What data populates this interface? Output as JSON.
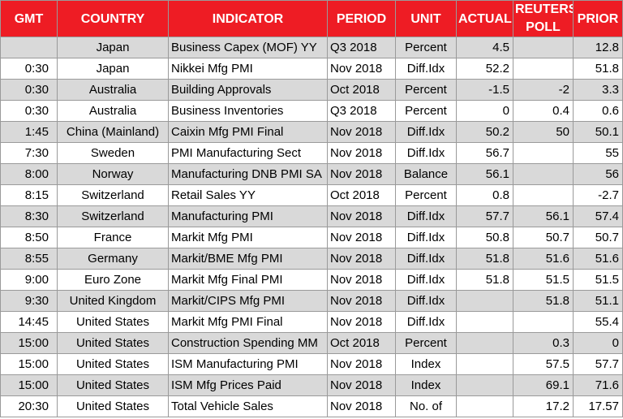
{
  "headers": {
    "gmt": "GMT",
    "country": "COUNTRY",
    "indicator": "INDICATOR",
    "period": "PERIOD",
    "unit": "UNIT",
    "actual": "ACTUAL",
    "reuters_line1": "REUTERS",
    "reuters_line2": "POLL",
    "prior": "PRIOR"
  },
  "rows": [
    {
      "gmt": "",
      "country": "Japan",
      "indicator": "Business Capex (MOF) YY",
      "period": "Q3 2018",
      "unit": "Percent",
      "actual": "4.5",
      "poll": "",
      "prior": "12.8"
    },
    {
      "gmt": "0:30",
      "country": "Japan",
      "indicator": "Nikkei Mfg PMI",
      "period": "Nov 2018",
      "unit": "Diff.Idx",
      "actual": "52.2",
      "poll": "",
      "prior": "51.8"
    },
    {
      "gmt": "0:30",
      "country": "Australia",
      "indicator": "Building Approvals",
      "period": "Oct 2018",
      "unit": "Percent",
      "actual": "-1.5",
      "poll": "-2",
      "prior": "3.3"
    },
    {
      "gmt": "0:30",
      "country": "Australia",
      "indicator": "Business Inventories",
      "period": "Q3 2018",
      "unit": "Percent",
      "actual": "0",
      "poll": "0.4",
      "prior": "0.6"
    },
    {
      "gmt": "1:45",
      "country": "China (Mainland)",
      "indicator": "Caixin Mfg PMI Final",
      "period": "Nov 2018",
      "unit": "Diff.Idx",
      "actual": "50.2",
      "poll": "50",
      "prior": "50.1"
    },
    {
      "gmt": "7:30",
      "country": "Sweden",
      "indicator": "PMI Manufacturing Sect",
      "period": "Nov 2018",
      "unit": "Diff.Idx",
      "actual": "56.7",
      "poll": "",
      "prior": "55"
    },
    {
      "gmt": "8:00",
      "country": "Norway",
      "indicator": "Manufacturing DNB PMI SA",
      "period": "Nov 2018",
      "unit": "Balance",
      "actual": "56.1",
      "poll": "",
      "prior": "56"
    },
    {
      "gmt": "8:15",
      "country": "Switzerland",
      "indicator": "Retail Sales YY",
      "period": "Oct 2018",
      "unit": "Percent",
      "actual": "0.8",
      "poll": "",
      "prior": "-2.7"
    },
    {
      "gmt": "8:30",
      "country": "Switzerland",
      "indicator": "Manufacturing PMI",
      "period": "Nov 2018",
      "unit": "Diff.Idx",
      "actual": "57.7",
      "poll": "56.1",
      "prior": "57.4"
    },
    {
      "gmt": "8:50",
      "country": "France",
      "indicator": "Markit Mfg PMI",
      "period": "Nov 2018",
      "unit": "Diff.Idx",
      "actual": "50.8",
      "poll": "50.7",
      "prior": "50.7"
    },
    {
      "gmt": "8:55",
      "country": "Germany",
      "indicator": "Markit/BME Mfg PMI",
      "period": "Nov 2018",
      "unit": "Diff.Idx",
      "actual": "51.8",
      "poll": "51.6",
      "prior": "51.6"
    },
    {
      "gmt": "9:00",
      "country": "Euro Zone",
      "indicator": "Markit Mfg Final PMI",
      "period": "Nov 2018",
      "unit": "Diff.Idx",
      "actual": "51.8",
      "poll": "51.5",
      "prior": "51.5"
    },
    {
      "gmt": "9:30",
      "country": "United Kingdom",
      "indicator": "Markit/CIPS Mfg PMI",
      "period": "Nov 2018",
      "unit": "Diff.Idx",
      "actual": "",
      "poll": "51.8",
      "prior": "51.1"
    },
    {
      "gmt": "14:45",
      "country": "United States",
      "indicator": "Markit Mfg PMI Final",
      "period": "Nov 2018",
      "unit": "Diff.Idx",
      "actual": "",
      "poll": "",
      "prior": "55.4"
    },
    {
      "gmt": "15:00",
      "country": "United States",
      "indicator": "Construction Spending MM",
      "period": "Oct 2018",
      "unit": "Percent",
      "actual": "",
      "poll": "0.3",
      "prior": "0"
    },
    {
      "gmt": "15:00",
      "country": "United States",
      "indicator": "ISM Manufacturing PMI",
      "period": "Nov 2018",
      "unit": "Index",
      "actual": "",
      "poll": "57.5",
      "prior": "57.7"
    },
    {
      "gmt": "15:00",
      "country": "United States",
      "indicator": "ISM Mfg Prices Paid",
      "period": "Nov 2018",
      "unit": "Index",
      "actual": "",
      "poll": "69.1",
      "prior": "71.6"
    },
    {
      "gmt": "20:30",
      "country": "United States",
      "indicator": "Total Vehicle Sales",
      "period": "Nov 2018",
      "unit": "No. of",
      "actual": "",
      "poll": "17.2",
      "prior": "17.57"
    }
  ]
}
